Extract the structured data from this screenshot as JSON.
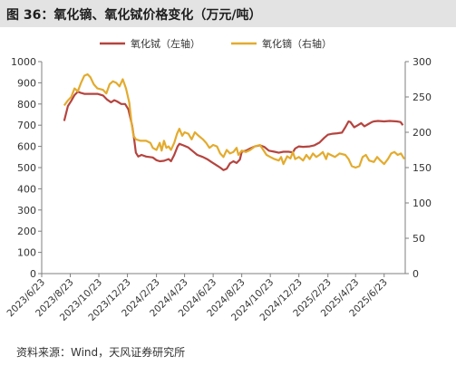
{
  "header": {
    "title": "图 36：氧化镝、氧化铽价格变化（万元/吨）"
  },
  "footer": {
    "source": "资料来源：Wind，天风证券研究所"
  },
  "chart_data": {
    "type": "line",
    "title": "",
    "legend_placement": "top-center",
    "grid": false,
    "colors": {
      "left_series": "#b5443f",
      "right_series": "#e3ab2e",
      "axis": "#7f7f7f",
      "text": "#333333"
    },
    "left_axis": {
      "min": 0,
      "max": 1000,
      "ticks": [
        "0",
        "100",
        "200",
        "300",
        "400",
        "500",
        "600",
        "700",
        "800",
        "900",
        "1000"
      ]
    },
    "right_axis": {
      "min": 0,
      "max": 300,
      "ticks": [
        "0",
        "50",
        "100",
        "150",
        "200",
        "250",
        "300"
      ]
    },
    "x_axis": {
      "min": "2023-06-23",
      "max": "2025-08-07",
      "ticks": [
        "2023/6/23",
        "2023/8/23",
        "2023/10/23",
        "2023/12/23",
        "2024/2/23",
        "2024/4/23",
        "2024/6/23",
        "2024/8/23",
        "2024/10/23",
        "2024/12/23",
        "2025/2/23",
        "2025/4/23",
        "2025/6/23"
      ]
    },
    "series": [
      {
        "name": "氧化铽（左轴）",
        "axis": "left",
        "points": [
          [
            "2023-08-10",
            720
          ],
          [
            "2023-08-18",
            790
          ],
          [
            "2023-08-25",
            815
          ],
          [
            "2023-09-01",
            842
          ],
          [
            "2023-09-08",
            858
          ],
          [
            "2023-09-15",
            852
          ],
          [
            "2023-09-22",
            848
          ],
          [
            "2023-10-05",
            848
          ],
          [
            "2023-10-20",
            848
          ],
          [
            "2023-11-01",
            840
          ],
          [
            "2023-11-10",
            820
          ],
          [
            "2023-11-18",
            808
          ],
          [
            "2023-11-25",
            818
          ],
          [
            "2023-12-01",
            812
          ],
          [
            "2023-12-10",
            800
          ],
          [
            "2023-12-18",
            800
          ],
          [
            "2023-12-25",
            775
          ],
          [
            "2024-01-02",
            700
          ],
          [
            "2024-01-06",
            640
          ],
          [
            "2024-01-10",
            570
          ],
          [
            "2024-01-15",
            552
          ],
          [
            "2024-01-22",
            560
          ],
          [
            "2024-02-01",
            552
          ],
          [
            "2024-02-15",
            548
          ],
          [
            "2024-02-23",
            535
          ],
          [
            "2024-03-01",
            530
          ],
          [
            "2024-03-10",
            532
          ],
          [
            "2024-03-20",
            540
          ],
          [
            "2024-03-25",
            530
          ],
          [
            "2024-04-01",
            560
          ],
          [
            "2024-04-08",
            600
          ],
          [
            "2024-04-12",
            612
          ],
          [
            "2024-04-20",
            605
          ],
          [
            "2024-05-01",
            595
          ],
          [
            "2024-05-10",
            578
          ],
          [
            "2024-05-20",
            560
          ],
          [
            "2024-06-01",
            550
          ],
          [
            "2024-06-10",
            540
          ],
          [
            "2024-06-20",
            525
          ],
          [
            "2024-07-01",
            510
          ],
          [
            "2024-07-08",
            500
          ],
          [
            "2024-07-15",
            488
          ],
          [
            "2024-07-22",
            495
          ],
          [
            "2024-07-29",
            520
          ],
          [
            "2024-08-05",
            530
          ],
          [
            "2024-08-12",
            522
          ],
          [
            "2024-08-19",
            538
          ],
          [
            "2024-08-23",
            575
          ],
          [
            "2024-09-01",
            580
          ],
          [
            "2024-09-10",
            590
          ],
          [
            "2024-09-20",
            600
          ],
          [
            "2024-10-01",
            605
          ],
          [
            "2024-10-10",
            598
          ],
          [
            "2024-10-20",
            580
          ],
          [
            "2024-11-01",
            575
          ],
          [
            "2024-11-10",
            570
          ],
          [
            "2024-11-20",
            575
          ],
          [
            "2024-12-01",
            575
          ],
          [
            "2024-12-10",
            572
          ],
          [
            "2024-12-15",
            590
          ],
          [
            "2024-12-23",
            600
          ],
          [
            "2025-01-01",
            598
          ],
          [
            "2025-01-15",
            600
          ],
          [
            "2025-01-25",
            605
          ],
          [
            "2025-02-05",
            618
          ],
          [
            "2025-02-15",
            640
          ],
          [
            "2025-02-23",
            655
          ],
          [
            "2025-03-05",
            660
          ],
          [
            "2025-03-15",
            662
          ],
          [
            "2025-03-25",
            665
          ],
          [
            "2025-04-01",
            690
          ],
          [
            "2025-04-08",
            718
          ],
          [
            "2025-04-12",
            715
          ],
          [
            "2025-04-20",
            690
          ],
          [
            "2025-04-28",
            700
          ],
          [
            "2025-05-05",
            710
          ],
          [
            "2025-05-12",
            695
          ],
          [
            "2025-05-20",
            705
          ],
          [
            "2025-05-28",
            715
          ],
          [
            "2025-06-01",
            718
          ],
          [
            "2025-06-10",
            720
          ],
          [
            "2025-06-23",
            718
          ],
          [
            "2025-07-05",
            720
          ],
          [
            "2025-07-20",
            718
          ],
          [
            "2025-07-28",
            715
          ],
          [
            "2025-08-02",
            700
          ]
        ]
      },
      {
        "name": "氧化镝（右轴）",
        "axis": "right",
        "points": [
          [
            "2023-08-10",
            238
          ],
          [
            "2023-08-18",
            245
          ],
          [
            "2023-08-25",
            250
          ],
          [
            "2023-09-01",
            262
          ],
          [
            "2023-09-08",
            258
          ],
          [
            "2023-09-15",
            270
          ],
          [
            "2023-09-22",
            280
          ],
          [
            "2023-09-29",
            282
          ],
          [
            "2023-10-05",
            278
          ],
          [
            "2023-10-12",
            268
          ],
          [
            "2023-10-20",
            262
          ],
          [
            "2023-11-01",
            260
          ],
          [
            "2023-11-08",
            255
          ],
          [
            "2023-11-15",
            268
          ],
          [
            "2023-11-22",
            272
          ],
          [
            "2023-11-29",
            270
          ],
          [
            "2023-12-06",
            265
          ],
          [
            "2023-12-13",
            275
          ],
          [
            "2023-12-20",
            262
          ],
          [
            "2023-12-27",
            242
          ],
          [
            "2024-01-01",
            212
          ],
          [
            "2024-01-05",
            195
          ],
          [
            "2024-01-10",
            190
          ],
          [
            "2024-01-20",
            188
          ],
          [
            "2024-02-01",
            188
          ],
          [
            "2024-02-10",
            185
          ],
          [
            "2024-02-15",
            178
          ],
          [
            "2024-02-23",
            175
          ],
          [
            "2024-03-01",
            185
          ],
          [
            "2024-03-05",
            174
          ],
          [
            "2024-03-10",
            188
          ],
          [
            "2024-03-15",
            178
          ],
          [
            "2024-03-20",
            180
          ],
          [
            "2024-03-25",
            175
          ],
          [
            "2024-04-01",
            185
          ],
          [
            "2024-04-07",
            198
          ],
          [
            "2024-04-12",
            205
          ],
          [
            "2024-04-18",
            195
          ],
          [
            "2024-04-23",
            200
          ],
          [
            "2024-05-01",
            198
          ],
          [
            "2024-05-08",
            190
          ],
          [
            "2024-05-15",
            200
          ],
          [
            "2024-05-23",
            195
          ],
          [
            "2024-06-01",
            190
          ],
          [
            "2024-06-08",
            185
          ],
          [
            "2024-06-15",
            178
          ],
          [
            "2024-06-23",
            182
          ],
          [
            "2024-07-01",
            180
          ],
          [
            "2024-07-08",
            170
          ],
          [
            "2024-07-15",
            165
          ],
          [
            "2024-07-22",
            175
          ],
          [
            "2024-07-29",
            170
          ],
          [
            "2024-08-05",
            172
          ],
          [
            "2024-08-12",
            178
          ],
          [
            "2024-08-16",
            168
          ],
          [
            "2024-08-23",
            174
          ],
          [
            "2024-09-01",
            172
          ],
          [
            "2024-09-10",
            175
          ],
          [
            "2024-09-20",
            180
          ],
          [
            "2024-10-01",
            182
          ],
          [
            "2024-10-08",
            175
          ],
          [
            "2024-10-15",
            168
          ],
          [
            "2024-10-23",
            165
          ],
          [
            "2024-11-01",
            162
          ],
          [
            "2024-11-10",
            160
          ],
          [
            "2024-11-15",
            165
          ],
          [
            "2024-11-20",
            155
          ],
          [
            "2024-11-28",
            166
          ],
          [
            "2024-12-05",
            163
          ],
          [
            "2024-12-10",
            172
          ],
          [
            "2024-12-15",
            162
          ],
          [
            "2024-12-23",
            165
          ],
          [
            "2025-01-01",
            160
          ],
          [
            "2025-01-08",
            168
          ],
          [
            "2025-01-15",
            162
          ],
          [
            "2025-01-22",
            170
          ],
          [
            "2025-01-29",
            165
          ],
          [
            "2025-02-05",
            168
          ],
          [
            "2025-02-12",
            172
          ],
          [
            "2025-02-19",
            162
          ],
          [
            "2025-02-23",
            170
          ],
          [
            "2025-03-01",
            168
          ],
          [
            "2025-03-10",
            165
          ],
          [
            "2025-03-20",
            170
          ],
          [
            "2025-04-01",
            168
          ],
          [
            "2025-04-08",
            162
          ],
          [
            "2025-04-15",
            152
          ],
          [
            "2025-04-23",
            150
          ],
          [
            "2025-05-01",
            152
          ],
          [
            "2025-05-08",
            165
          ],
          [
            "2025-05-15",
            168
          ],
          [
            "2025-05-22",
            160
          ],
          [
            "2025-06-01",
            158
          ],
          [
            "2025-06-08",
            165
          ],
          [
            "2025-06-15",
            160
          ],
          [
            "2025-06-23",
            155
          ],
          [
            "2025-07-01",
            162
          ],
          [
            "2025-07-08",
            170
          ],
          [
            "2025-07-15",
            172
          ],
          [
            "2025-07-22",
            168
          ],
          [
            "2025-07-29",
            170
          ],
          [
            "2025-08-05",
            162
          ]
        ]
      }
    ]
  }
}
